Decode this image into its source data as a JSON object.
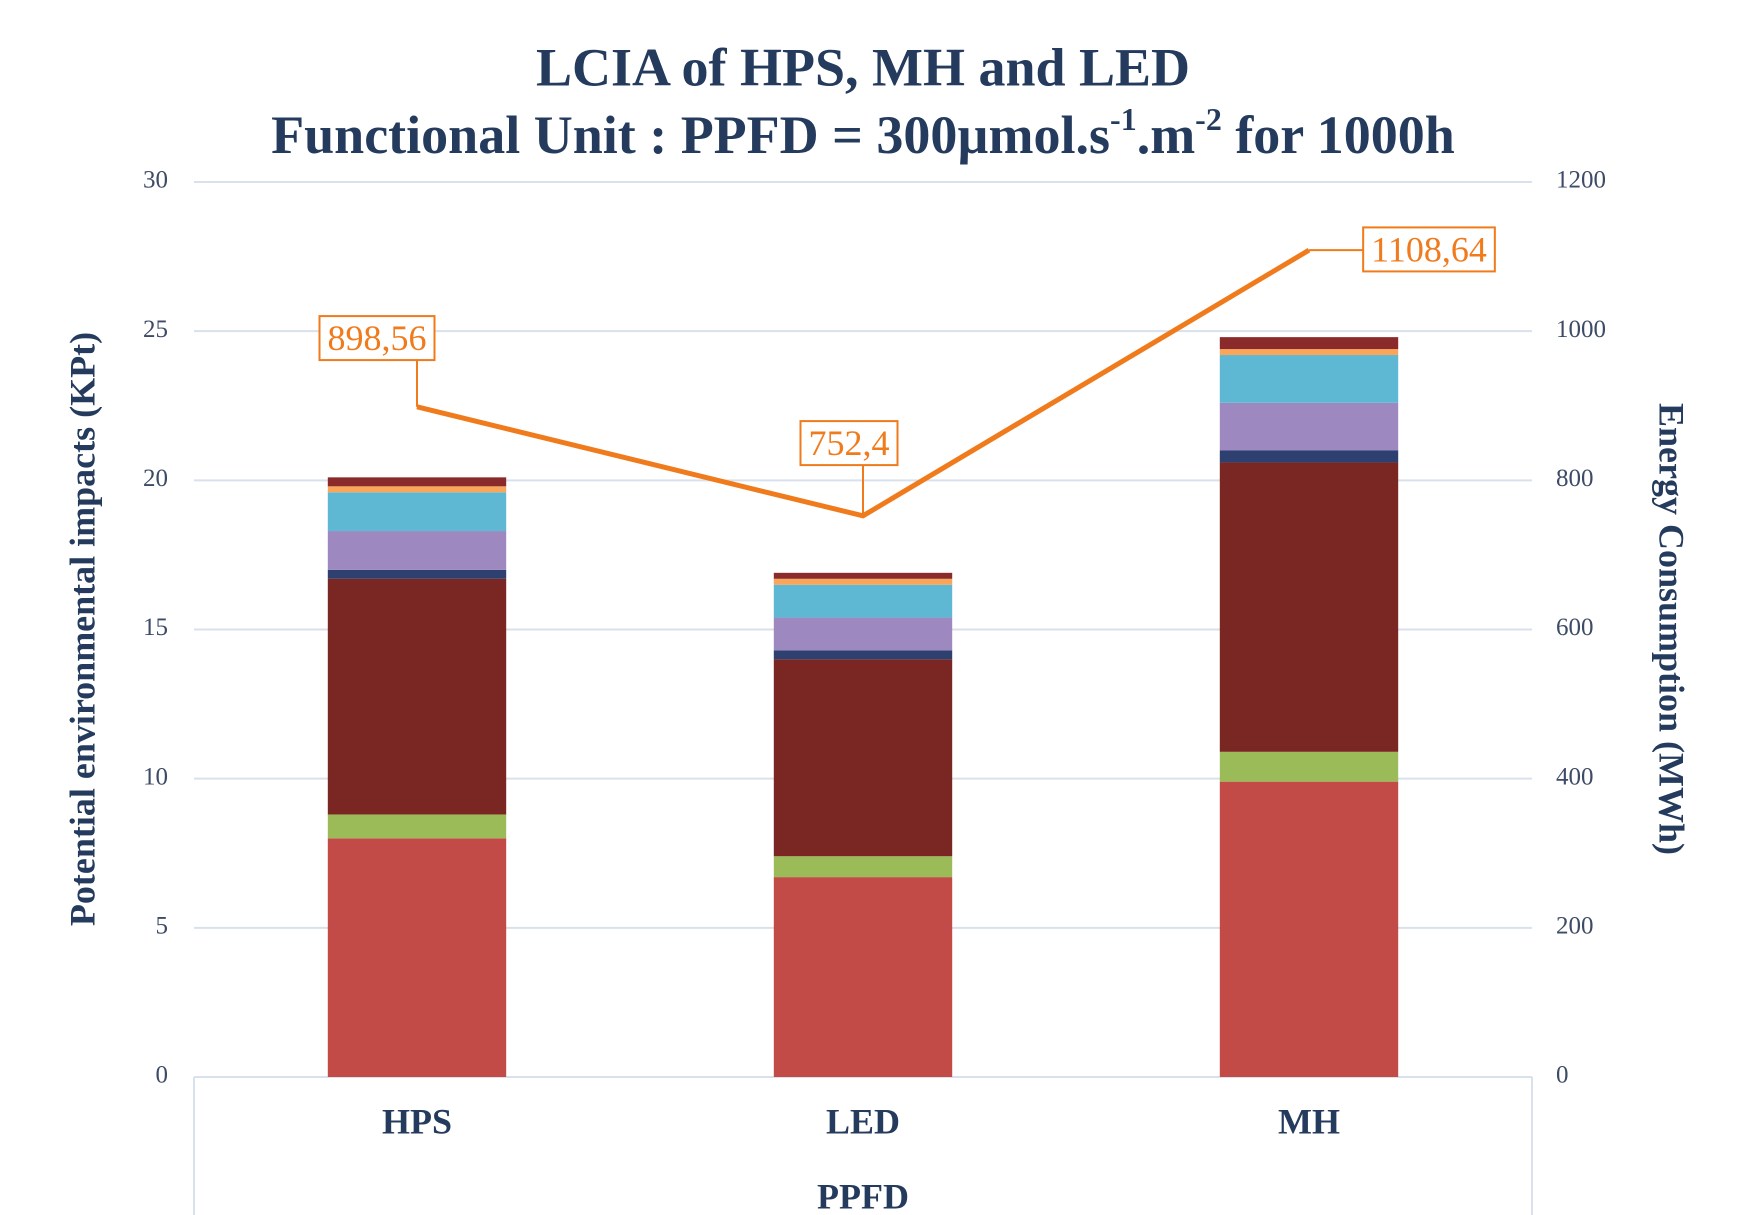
{
  "chart_data": {
    "type": "bar",
    "stacked": true,
    "title": "LCIA of HPS, MH and LED",
    "subtitle": [
      "Functional Unit : PPFD = 300µmol.s",
      "-1",
      ".m",
      "-2",
      " for 1000h"
    ],
    "x_label": "PPFD",
    "y_label": "Potential environmental impacts (KPt)",
    "y2_label": "Energy Consumption (MWh)",
    "categories": [
      "HPS",
      "LED",
      "MH"
    ],
    "series": [
      {
        "color": "#c24b47",
        "values": [
          8.0,
          6.7,
          9.9
        ]
      },
      {
        "color": "#9bbb59",
        "values": [
          0.8,
          0.7,
          1.0
        ]
      },
      {
        "color": "#7a2622",
        "values": [
          7.9,
          6.6,
          9.7
        ]
      },
      {
        "color": "#2e4070",
        "values": [
          0.3,
          0.3,
          0.4
        ]
      },
      {
        "color": "#9d88bf",
        "values": [
          1.3,
          1.1,
          1.6
        ]
      },
      {
        "color": "#5eb8d3",
        "values": [
          1.3,
          1.1,
          1.6
        ]
      },
      {
        "color": "#f9a55a",
        "values": [
          0.2,
          0.2,
          0.2
        ]
      },
      {
        "color": "#8b2a2a",
        "values": [
          0.3,
          0.2,
          0.4
        ]
      },
      {
        "type": "line",
        "axis": "y2",
        "color": "#f07b1c",
        "values": [
          898.56,
          752.4,
          1108.64
        ],
        "value_labels": [
          "898,56",
          "752,4",
          "1108,64"
        ]
      }
    ],
    "ylim": [
      0,
      30
    ],
    "yticks": [
      0,
      5,
      10,
      15,
      20,
      25,
      30
    ],
    "y2lim": [
      0,
      1200
    ],
    "y2ticks": [
      0,
      200,
      400,
      600,
      800,
      1000,
      1200
    ],
    "grid": true
  }
}
